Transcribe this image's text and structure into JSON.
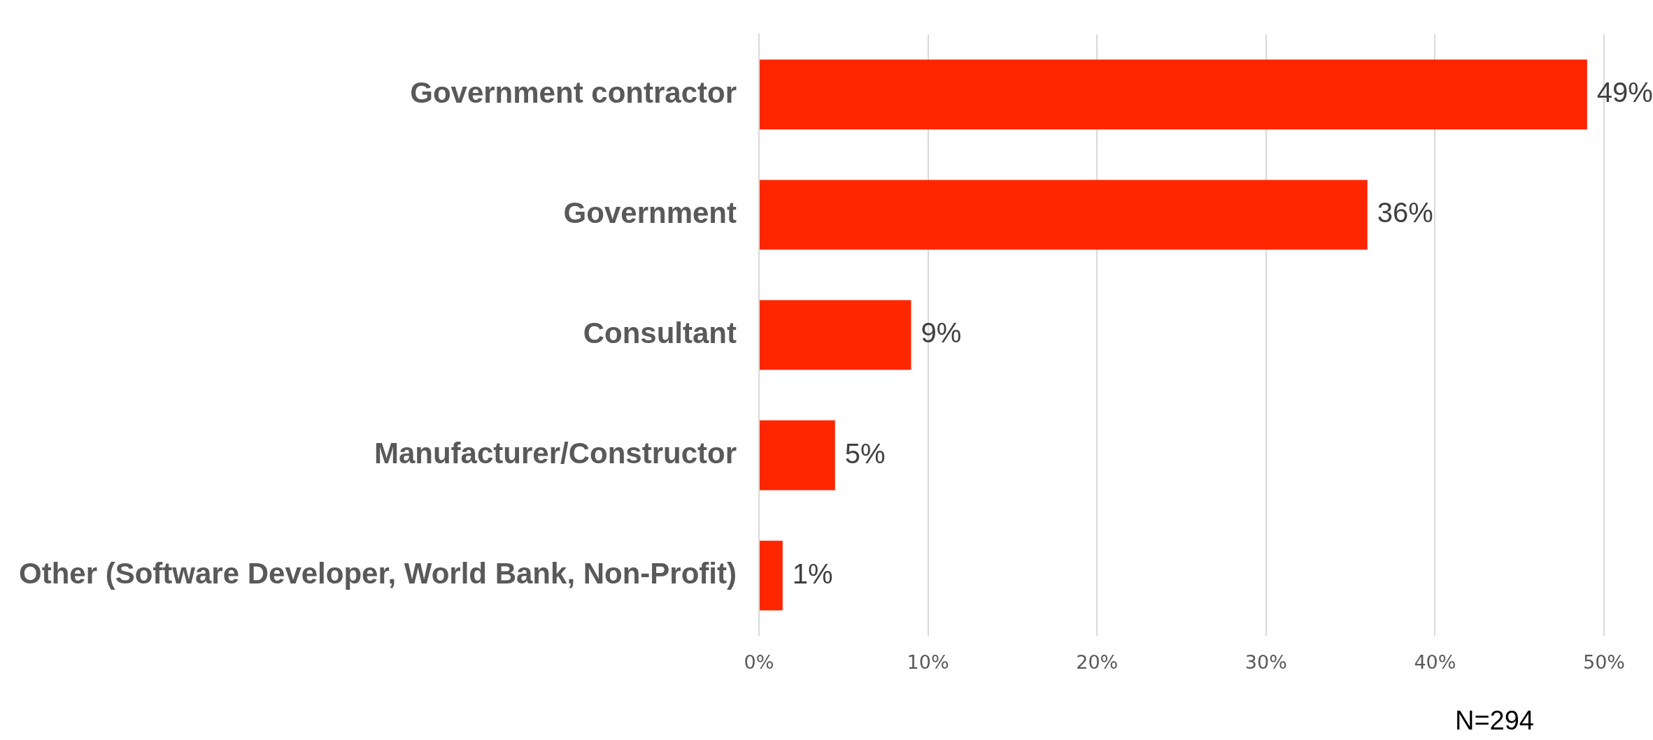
{
  "chart_data": {
    "type": "bar",
    "orientation": "horizontal",
    "categories": [
      "Government contractor",
      "Government",
      "Consultant",
      "Manufacturer/Constructor",
      "Other (Software Developer, World Bank, Non-Profit)"
    ],
    "values": [
      49,
      36,
      9,
      4.5,
      1.4
    ],
    "value_labels": [
      "49%",
      "36%",
      "9%",
      "5%",
      "1%"
    ],
    "color": "#ff2600",
    "xlim": [
      0,
      50
    ],
    "xticks": [
      {
        "value": 0,
        "label": "0%"
      },
      {
        "value": 10,
        "label": "10%"
      },
      {
        "value": 20,
        "label": "20%"
      },
      {
        "value": 30,
        "label": "30%"
      },
      {
        "value": 40,
        "label": "40%"
      },
      {
        "value": 50,
        "label": "50%"
      }
    ],
    "grid": "x",
    "legend": false,
    "annotations": [
      "N=294"
    ]
  }
}
